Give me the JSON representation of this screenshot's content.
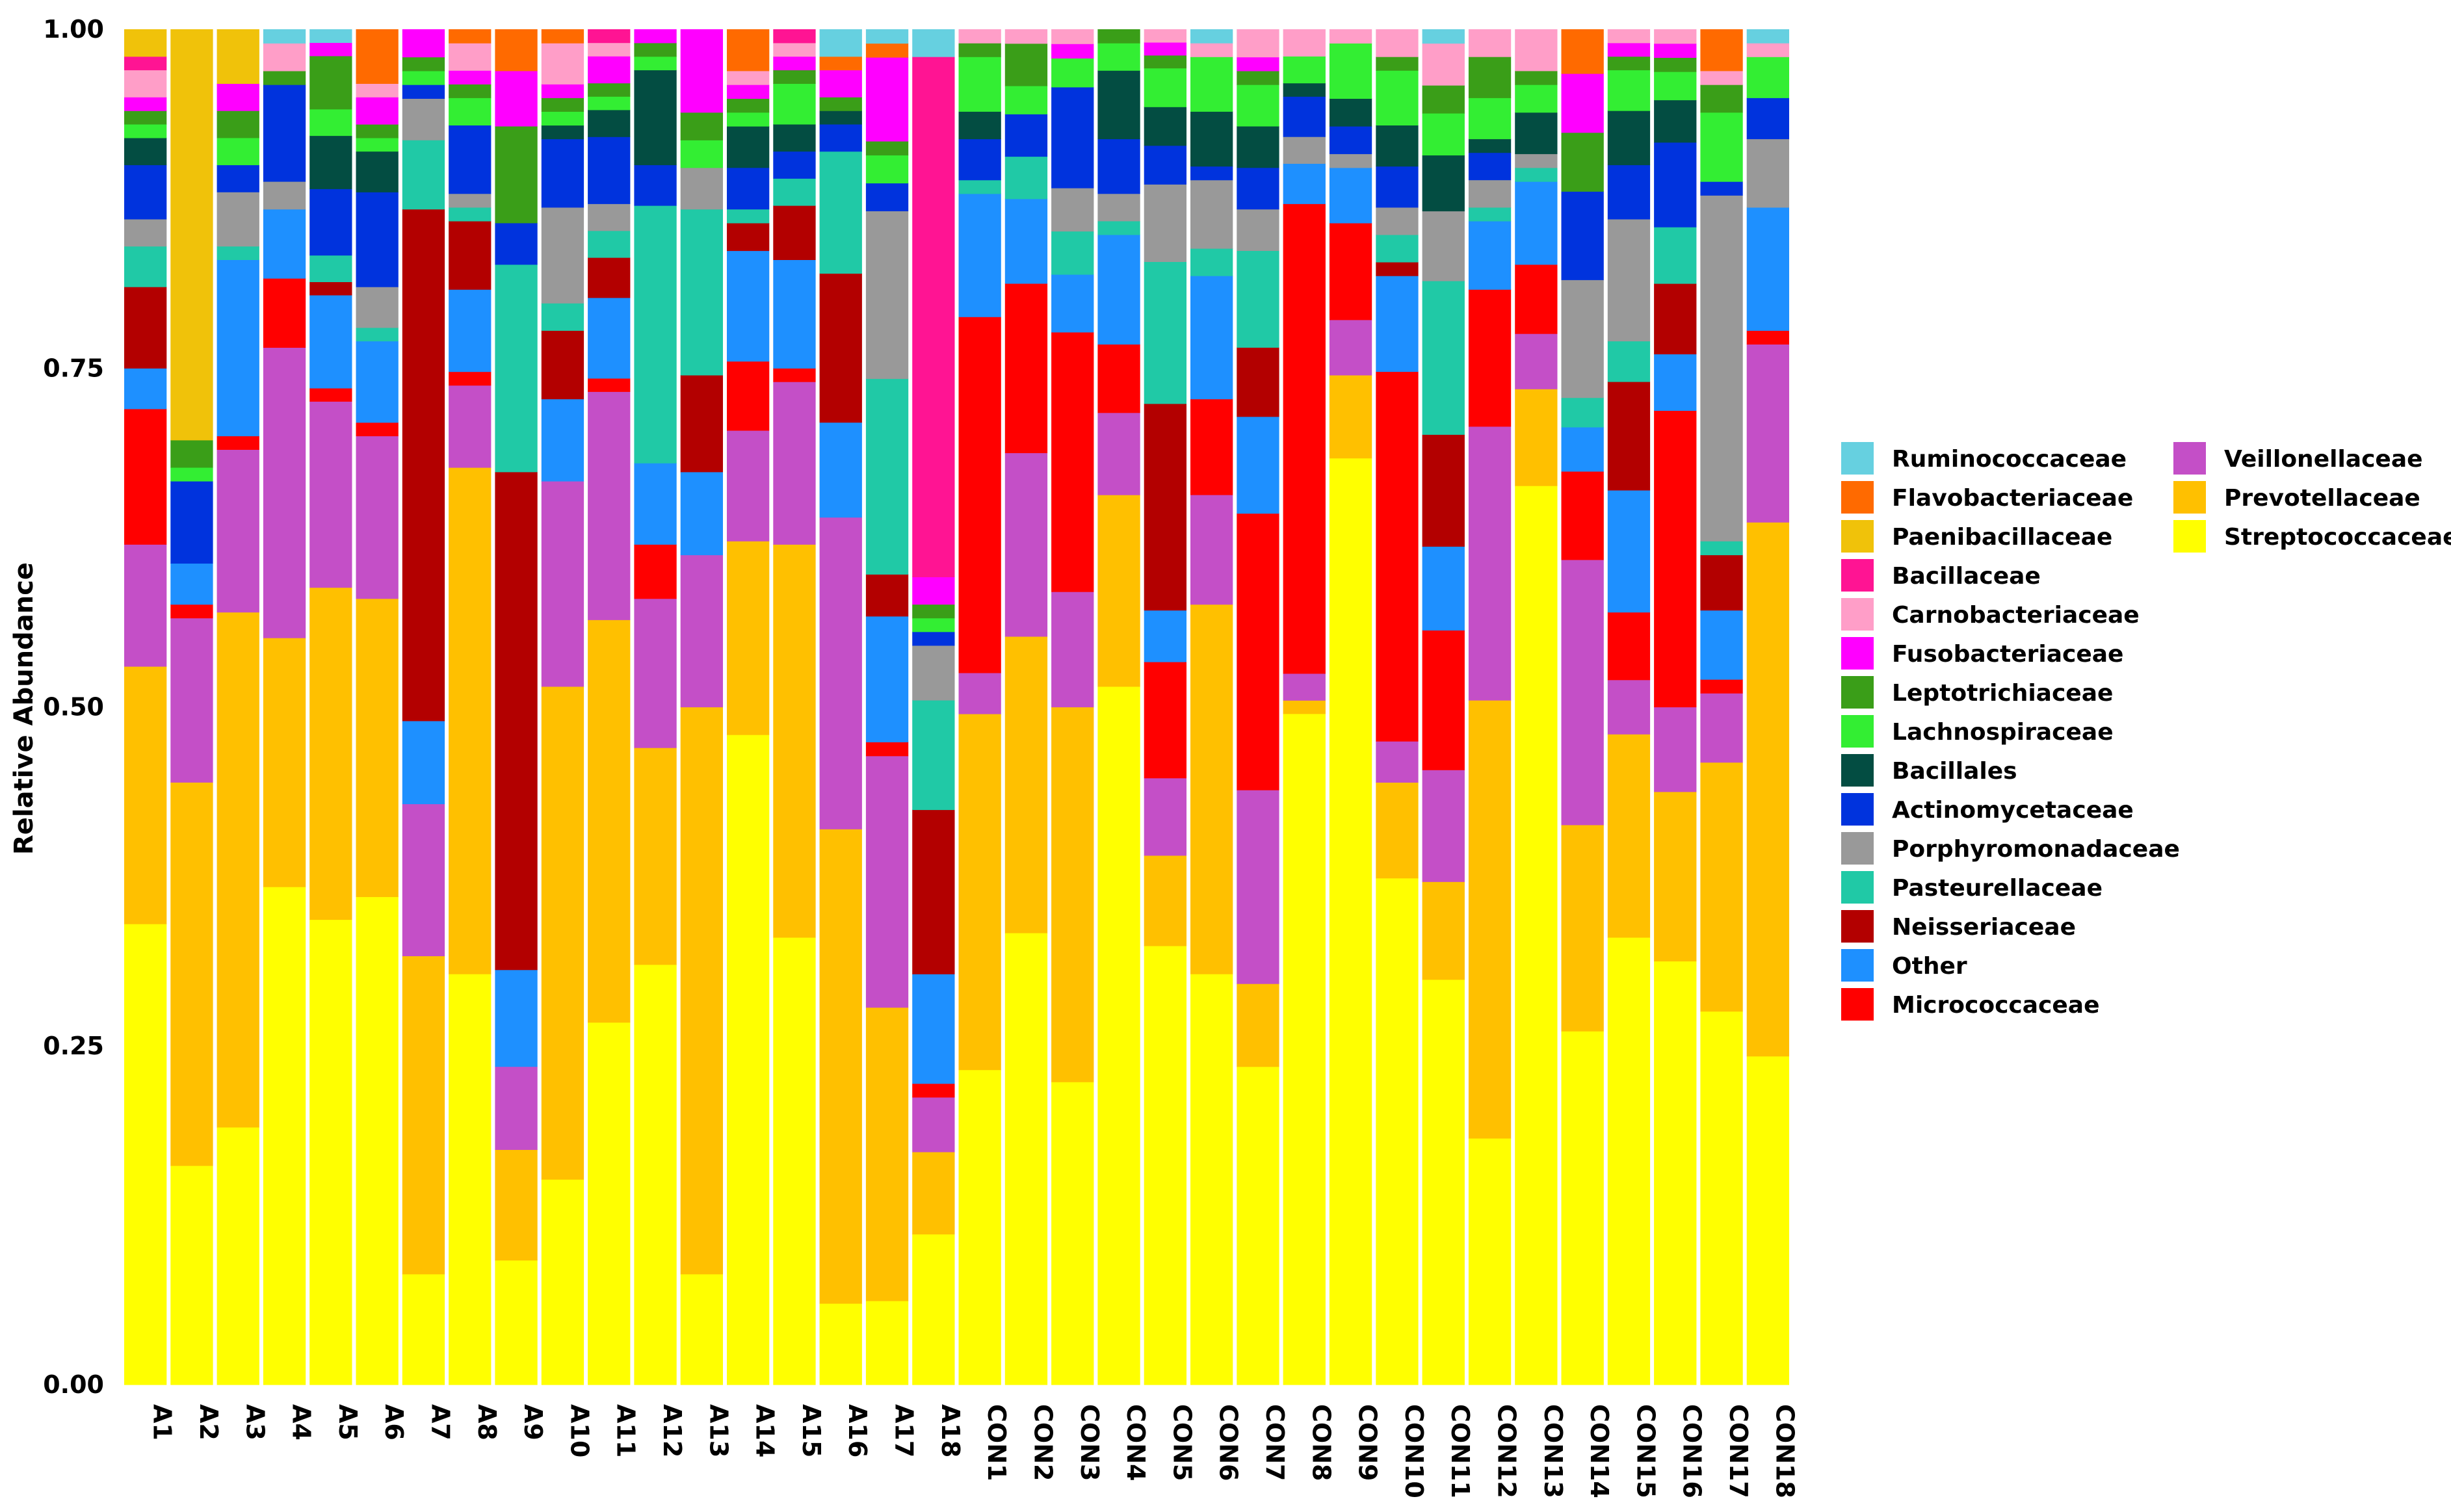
{
  "chart_data": {
    "type": "bar",
    "stacked": true,
    "ylabel": "Relative Abundance",
    "xlabel": "",
    "ylim": [
      0,
      1
    ],
    "yticks": [
      "0.00",
      "0.25",
      "0.50",
      "0.75",
      "1.00"
    ],
    "legend_position": "right",
    "categories": [
      "A1",
      "A2",
      "A3",
      "A4",
      "A5",
      "A6",
      "A7",
      "A8",
      "A9",
      "A10",
      "A11",
      "A12",
      "A13",
      "A14",
      "A15",
      "A16",
      "A17",
      "A18",
      "CON1",
      "CON2",
      "CON3",
      "CON4",
      "CON5",
      "CON6",
      "CON7",
      "CON8",
      "CON9",
      "CON10",
      "CON11",
      "CON12",
      "CON13",
      "CON14",
      "CON15",
      "CON16",
      "CON17",
      "CON18"
    ],
    "series": [
      {
        "name": "Streptococcaceae",
        "color": "#ffff00",
        "values": [
          0.34,
          0.16,
          0.19,
          0.36,
          0.35,
          0.36,
          0.08,
          0.3,
          0.09,
          0.15,
          0.27,
          0.31,
          0.08,
          0.47,
          0.33,
          0.06,
          0.06,
          0.11,
          0.23,
          0.32,
          0.21,
          0.51,
          0.34,
          0.3,
          0.23,
          0.5,
          0.67,
          0.37,
          0.29,
          0.18,
          0.65,
          0.24,
          0.33,
          0.3,
          0.27,
          0.24
        ]
      },
      {
        "name": "Prevotellaceae",
        "color": "#ffc000",
        "values": [
          0.19,
          0.28,
          0.38,
          0.18,
          0.25,
          0.22,
          0.23,
          0.37,
          0.08,
          0.36,
          0.3,
          0.16,
          0.41,
          0.14,
          0.29,
          0.35,
          0.21,
          0.06,
          0.26,
          0.21,
          0.26,
          0.14,
          0.07,
          0.27,
          0.06,
          0.01,
          0.06,
          0.07,
          0.07,
          0.32,
          0.07,
          0.14,
          0.15,
          0.12,
          0.18,
          0.39
        ]
      },
      {
        "name": "Veillonellaceae",
        "color": "#c44fc7",
        "values": [
          0.09,
          0.12,
          0.12,
          0.21,
          0.14,
          0.12,
          0.11,
          0.06,
          0.06,
          0.15,
          0.17,
          0.11,
          0.11,
          0.08,
          0.12,
          0.23,
          0.18,
          0.04,
          0.03,
          0.13,
          0.08,
          0.06,
          0.06,
          0.08,
          0.14,
          0.02,
          0.04,
          0.03,
          0.08,
          0.2,
          0.04,
          0.18,
          0.04,
          0.06,
          0.05,
          0.13
        ]
      },
      {
        "name": "Micrococcaceae",
        "color": "#ff0000",
        "values": [
          0.1,
          0.01,
          0.01,
          0.05,
          0.01,
          0.01,
          0.0,
          0.01,
          0.0,
          0.0,
          0.01,
          0.04,
          0.0,
          0.05,
          0.01,
          0.0,
          0.01,
          0.01,
          0.26,
          0.12,
          0.18,
          0.05,
          0.09,
          0.07,
          0.2,
          0.35,
          0.07,
          0.27,
          0.1,
          0.1,
          0.05,
          0.06,
          0.05,
          0.21,
          0.01,
          0.01
        ]
      },
      {
        "name": "Other",
        "color": "#1e90ff",
        "values": [
          0.03,
          0.03,
          0.13,
          0.05,
          0.07,
          0.06,
          0.06,
          0.06,
          0.07,
          0.06,
          0.06,
          0.06,
          0.06,
          0.08,
          0.08,
          0.07,
          0.09,
          0.08,
          0.09,
          0.06,
          0.04,
          0.08,
          0.04,
          0.09,
          0.07,
          0.03,
          0.04,
          0.07,
          0.06,
          0.05,
          0.06,
          0.03,
          0.09,
          0.04,
          0.05,
          0.09
        ]
      },
      {
        "name": "Neisseriaceae",
        "color": "#b30000",
        "values": [
          0.06,
          0.0,
          0.0,
          0.0,
          0.01,
          0.0,
          0.37,
          0.05,
          0.36,
          0.05,
          0.03,
          0.0,
          0.07,
          0.02,
          0.04,
          0.11,
          0.03,
          0.12,
          0.0,
          0.0,
          0.0,
          0.0,
          0.16,
          0.0,
          0.05,
          0.0,
          0.0,
          0.01,
          0.08,
          0.0,
          0.0,
          0.0,
          0.08,
          0.05,
          0.04,
          0.0
        ]
      },
      {
        "name": "Pasteurellaceae",
        "color": "#20c9a6",
        "values": [
          0.03,
          0.0,
          0.01,
          0.0,
          0.02,
          0.01,
          0.05,
          0.01,
          0.15,
          0.02,
          0.02,
          0.19,
          0.12,
          0.01,
          0.02,
          0.09,
          0.14,
          0.08,
          0.01,
          0.03,
          0.03,
          0.01,
          0.11,
          0.02,
          0.07,
          0.0,
          0.0,
          0.02,
          0.11,
          0.01,
          0.01,
          0.02,
          0.03,
          0.04,
          0.01,
          0.0
        ]
      },
      {
        "name": "Porphyromonadaceae",
        "color": "#999999",
        "values": [
          0.02,
          0.0,
          0.04,
          0.02,
          0.0,
          0.03,
          0.03,
          0.01,
          0.0,
          0.07,
          0.02,
          0.0,
          0.03,
          0.0,
          0.0,
          0.0,
          0.12,
          0.04,
          0.0,
          0.0,
          0.03,
          0.02,
          0.06,
          0.05,
          0.03,
          0.02,
          0.01,
          0.02,
          0.05,
          0.02,
          0.01,
          0.08,
          0.09,
          0.0,
          0.25,
          0.05
        ]
      },
      {
        "name": "Actinomycetaceae",
        "color": "#0033dd",
        "values": [
          0.04,
          0.06,
          0.02,
          0.07,
          0.05,
          0.07,
          0.01,
          0.05,
          0.03,
          0.05,
          0.05,
          0.03,
          0.0,
          0.03,
          0.02,
          0.02,
          0.02,
          0.01,
          0.03,
          0.03,
          0.07,
          0.04,
          0.03,
          0.01,
          0.03,
          0.03,
          0.02,
          0.03,
          0.0,
          0.02,
          0.0,
          0.06,
          0.04,
          0.06,
          0.01,
          0.03
        ]
      },
      {
        "name": "Bacillales",
        "color": "#034d42",
        "values": [
          0.02,
          0.0,
          0.0,
          0.0,
          0.04,
          0.03,
          0.0,
          0.0,
          0.0,
          0.01,
          0.02,
          0.07,
          0.0,
          0.03,
          0.02,
          0.01,
          0.0,
          0.0,
          0.02,
          0.0,
          0.0,
          0.05,
          0.03,
          0.04,
          0.03,
          0.01,
          0.02,
          0.03,
          0.04,
          0.01,
          0.03,
          0.0,
          0.04,
          0.03,
          0.0,
          0.0
        ]
      },
      {
        "name": "Lachnospiraceae",
        "color": "#33ee33",
        "values": [
          0.01,
          0.01,
          0.02,
          0.0,
          0.02,
          0.01,
          0.01,
          0.02,
          0.0,
          0.01,
          0.01,
          0.01,
          0.02,
          0.01,
          0.03,
          0.0,
          0.02,
          0.01,
          0.04,
          0.02,
          0.02,
          0.02,
          0.03,
          0.04,
          0.03,
          0.02,
          0.04,
          0.04,
          0.03,
          0.03,
          0.02,
          0.0,
          0.03,
          0.02,
          0.05,
          0.03
        ]
      },
      {
        "name": "Leptotrichiaceae",
        "color": "#3a9e18",
        "values": [
          0.01,
          0.02,
          0.02,
          0.01,
          0.04,
          0.01,
          0.01,
          0.01,
          0.07,
          0.01,
          0.01,
          0.01,
          0.02,
          0.01,
          0.01,
          0.01,
          0.01,
          0.01,
          0.01,
          0.03,
          0.0,
          0.01,
          0.01,
          0.0,
          0.01,
          0.0,
          0.0,
          0.01,
          0.02,
          0.03,
          0.01,
          0.04,
          0.01,
          0.01,
          0.02,
          0.0
        ]
      },
      {
        "name": "Fusobacteriaceae",
        "color": "#ff00ff",
        "values": [
          0.01,
          0.0,
          0.02,
          0.0,
          0.01,
          0.02,
          0.02,
          0.01,
          0.04,
          0.01,
          0.02,
          0.01,
          0.06,
          0.01,
          0.01,
          0.02,
          0.06,
          0.02,
          0.0,
          0.0,
          0.01,
          0.0,
          0.01,
          0.0,
          0.01,
          0.0,
          0.0,
          0.0,
          0.0,
          0.0,
          0.0,
          0.04,
          0.01,
          0.01,
          0.0,
          0.0
        ]
      },
      {
        "name": "Carnobacteriaceae",
        "color": "#ff9ec8",
        "values": [
          0.02,
          0.0,
          0.0,
          0.02,
          0.0,
          0.01,
          0.0,
          0.02,
          0.0,
          0.03,
          0.01,
          0.0,
          0.0,
          0.01,
          0.01,
          0.0,
          0.0,
          0.0,
          0.01,
          0.01,
          0.01,
          0.0,
          0.01,
          0.01,
          0.02,
          0.02,
          0.01,
          0.02,
          0.03,
          0.02,
          0.03,
          0.0,
          0.01,
          0.01,
          0.01,
          0.01
        ]
      },
      {
        "name": "Bacillaceae",
        "color": "#ff1493",
        "values": [
          0.01,
          0.0,
          0.0,
          0.0,
          0.0,
          0.0,
          0.0,
          0.0,
          0.0,
          0.0,
          0.01,
          0.0,
          0.0,
          0.0,
          0.01,
          0.0,
          0.0,
          0.38,
          0.0,
          0.0,
          0.0,
          0.0,
          0.0,
          0.0,
          0.0,
          0.0,
          0.0,
          0.0,
          0.0,
          0.0,
          0.0,
          0.0,
          0.0,
          0.0,
          0.0,
          0.0
        ]
      },
      {
        "name": "Paenibacillaceae",
        "color": "#f0c20a",
        "values": [
          0.02,
          0.3,
          0.04,
          0.0,
          0.0,
          0.0,
          0.0,
          0.0,
          0.0,
          0.0,
          0.0,
          0.0,
          0.0,
          0.0,
          0.0,
          0.0,
          0.0,
          0.0,
          0.0,
          0.0,
          0.0,
          0.0,
          0.0,
          0.0,
          0.0,
          0.0,
          0.0,
          0.0,
          0.0,
          0.0,
          0.0,
          0.0,
          0.0,
          0.0,
          0.0,
          0.0
        ]
      },
      {
        "name": "Flavobacteriaceae",
        "color": "#ff6a00",
        "values": [
          0.0,
          0.0,
          0.0,
          0.0,
          0.0,
          0.04,
          0.0,
          0.01,
          0.03,
          0.01,
          0.0,
          0.0,
          0.0,
          0.03,
          0.0,
          0.01,
          0.01,
          0.0,
          0.0,
          0.0,
          0.0,
          0.0,
          0.0,
          0.0,
          0.0,
          0.0,
          0.0,
          0.0,
          0.0,
          0.0,
          0.0,
          0.03,
          0.0,
          0.0,
          0.03,
          0.0
        ]
      },
      {
        "name": "Ruminococcaceae",
        "color": "#66d0e0",
        "values": [
          0.0,
          0.0,
          0.0,
          0.01,
          0.01,
          0.0,
          0.0,
          0.0,
          0.0,
          0.0,
          0.0,
          0.0,
          0.0,
          0.0,
          0.0,
          0.02,
          0.01,
          0.02,
          0.0,
          0.0,
          0.0,
          0.0,
          0.0,
          0.01,
          0.0,
          0.0,
          0.0,
          0.0,
          0.01,
          0.0,
          0.0,
          0.0,
          0.0,
          0.0,
          0.0,
          0.01
        ]
      }
    ],
    "legend_columns": [
      [
        "Ruminococcaceae",
        "Flavobacteriaceae",
        "Paenibacillaceae",
        "Bacillaceae",
        "Carnobacteriaceae",
        "Fusobacteriaceae",
        "Leptotrichiaceae",
        "Lachnospiraceae",
        "Bacillales",
        "Actinomycetaceae",
        "Porphyromonadaceae",
        "Pasteurellaceae",
        "Neisseriaceae",
        "Other",
        "Micrococcaceae"
      ],
      [
        "Veillonellaceae",
        "Prevotellaceae",
        "Streptococcaceae"
      ]
    ]
  }
}
